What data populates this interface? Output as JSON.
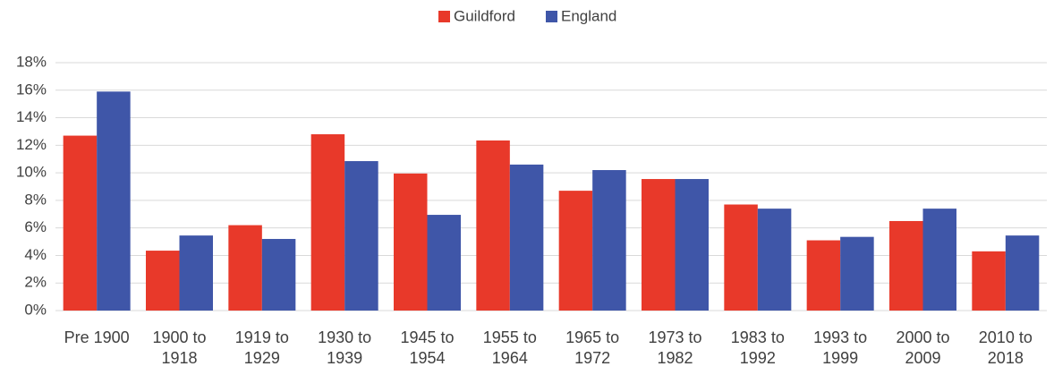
{
  "chart_data": {
    "type": "bar",
    "categories": [
      "Pre 1900",
      "1900 to 1918",
      "1919 to 1929",
      "1930 to 1939",
      "1945 to 1954",
      "1955 to 1964",
      "1965 to 1972",
      "1973 to 1982",
      "1983 to 1992",
      "1993 to 1999",
      "2000 to 2009",
      "2010 to 2018"
    ],
    "series": [
      {
        "name": "Guildford",
        "color": "#e8392a",
        "values": [
          12.7,
          4.35,
          6.2,
          12.8,
          9.95,
          12.35,
          8.7,
          9.55,
          7.7,
          5.1,
          6.5,
          4.3
        ]
      },
      {
        "name": "England",
        "color": "#3f56a8",
        "values": [
          15.9,
          5.45,
          5.2,
          10.85,
          6.95,
          10.6,
          10.2,
          9.55,
          7.4,
          5.35,
          7.4,
          5.45
        ]
      }
    ],
    "ylim": [
      0,
      18
    ],
    "yticks": [
      {
        "value": 0,
        "label": "0%"
      },
      {
        "value": 2,
        "label": "2%"
      },
      {
        "value": 4,
        "label": "4%"
      },
      {
        "value": 6,
        "label": "6%"
      },
      {
        "value": 8,
        "label": "8%"
      },
      {
        "value": 10,
        "label": "10%"
      },
      {
        "value": 12,
        "label": "12%"
      },
      {
        "value": 14,
        "label": "14%"
      },
      {
        "value": 16,
        "label": "16%"
      },
      {
        "value": 18,
        "label": "18%"
      }
    ],
    "grid": true,
    "legend": "top"
  }
}
